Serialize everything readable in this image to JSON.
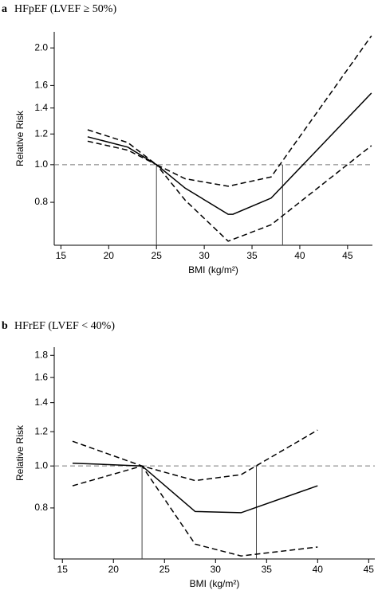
{
  "chart_data": [
    {
      "type": "line",
      "panel": "a",
      "title": "HFpEF (LVEF ≥ 50%)",
      "x_label": "BMI (kg/m²)",
      "y_label": "Relative Risk",
      "log_y": true,
      "xlim": [
        14.3,
        47.6
      ],
      "ylim": [
        0.62,
        2.2
      ],
      "xticks": [
        15,
        20,
        25,
        30,
        35,
        40,
        45
      ],
      "yticks": [
        0.8,
        {
          "value": 1,
          "label": "1.0"
        },
        1.2,
        1.4,
        1.6,
        {
          "value": 2,
          "label": "2.0"
        }
      ],
      "reference_line": 1,
      "vlines": [
        25,
        38.2
      ],
      "series": [
        {
          "color": "#000000",
          "style": "solid",
          "x": [
            17.8,
            22,
            25,
            28,
            32.5,
            33,
            37,
            47.5
          ],
          "values": [
            1.18,
            1.11,
            1.0,
            0.87,
            0.745,
            0.745,
            0.82,
            1.53
          ]
        },
        {
          "color": "#000000",
          "style": "dashed",
          "x": [
            17.8,
            22,
            25,
            28,
            32.5,
            37,
            47.5
          ],
          "values": [
            1.23,
            1.14,
            1.0,
            0.92,
            0.88,
            0.93,
            2.15
          ]
        },
        {
          "color": "#000000",
          "style": "dashed",
          "x": [
            17.8,
            22,
            25,
            28,
            32.5,
            37,
            47.5
          ],
          "values": [
            1.15,
            1.09,
            1.0,
            0.81,
            0.635,
            0.7,
            1.12
          ]
        }
      ]
    },
    {
      "type": "line",
      "panel": "b",
      "title": "HFrEF (LVEF < 40%)",
      "x_label": "BMI (kg/m²)",
      "y_label": "Relative Risk",
      "log_y": true,
      "xlim": [
        14.2,
        45.6
      ],
      "ylim": [
        0.61,
        1.88
      ],
      "xticks": [
        15,
        20,
        25,
        30,
        35,
        40,
        45
      ],
      "yticks": [
        0.8,
        {
          "value": 1,
          "label": "1.0"
        },
        1.2,
        1.4,
        1.6,
        1.8
      ],
      "reference_line": 1,
      "vlines": [
        22.8,
        34
      ],
      "series": [
        {
          "color": "#000000",
          "style": "solid",
          "x": [
            16,
            22.8,
            28,
            32.5,
            40
          ],
          "values": [
            1.015,
            1.0,
            0.785,
            0.78,
            0.9
          ]
        },
        {
          "color": "#000000",
          "style": "dashed",
          "x": [
            16,
            22.8,
            28,
            32.5,
            40
          ],
          "values": [
            1.14,
            1.0,
            0.925,
            0.955,
            1.21
          ]
        },
        {
          "color": "#000000",
          "style": "dashed",
          "x": [
            16,
            22.8,
            28,
            32.5,
            40
          ],
          "values": [
            0.9,
            1.0,
            0.66,
            0.62,
            0.65
          ]
        }
      ]
    }
  ]
}
